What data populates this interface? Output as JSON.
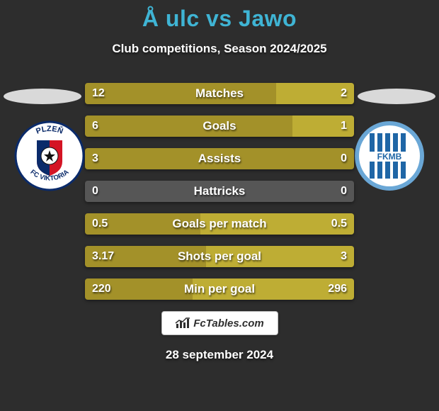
{
  "title": "Å ulc vs Jawo",
  "subtitle": "Club competitions, Season 2024/2025",
  "date": "28 september 2024",
  "footer": {
    "logo_text": "FcTables.com"
  },
  "colors": {
    "left_bar": "#a39129",
    "right_bar": "#bead34",
    "zero_bar": "#565656",
    "title_color": "#3fb4d4",
    "background": "#2d2d2d",
    "text": "#ffffff"
  },
  "crest_left": {
    "name": "FC Viktoria Plzeň",
    "label_top": "PLZEŇ",
    "label_bottom": "FC VIKTORIA"
  },
  "crest_right": {
    "name": "FK Mladá Boleslav",
    "label": "FKMB"
  },
  "stats": [
    {
      "label": "Matches",
      "left_val": "12",
      "right_val": "2",
      "left_pct": 71,
      "right_pct": 29
    },
    {
      "label": "Goals",
      "left_val": "6",
      "right_val": "1",
      "left_pct": 77,
      "right_pct": 23
    },
    {
      "label": "Assists",
      "left_val": "3",
      "right_val": "0",
      "left_pct": 100,
      "right_pct": 0
    },
    {
      "label": "Hattricks",
      "left_val": "0",
      "right_val": "0",
      "left_pct": 0,
      "right_pct": 0
    },
    {
      "label": "Goals per match",
      "left_val": "0.5",
      "right_val": "0.5",
      "left_pct": 43,
      "right_pct": 57
    },
    {
      "label": "Shots per goal",
      "left_val": "3.17",
      "right_val": "3",
      "left_pct": 45,
      "right_pct": 55
    },
    {
      "label": "Min per goal",
      "left_val": "220",
      "right_val": "296",
      "left_pct": 40,
      "right_pct": 60
    }
  ]
}
